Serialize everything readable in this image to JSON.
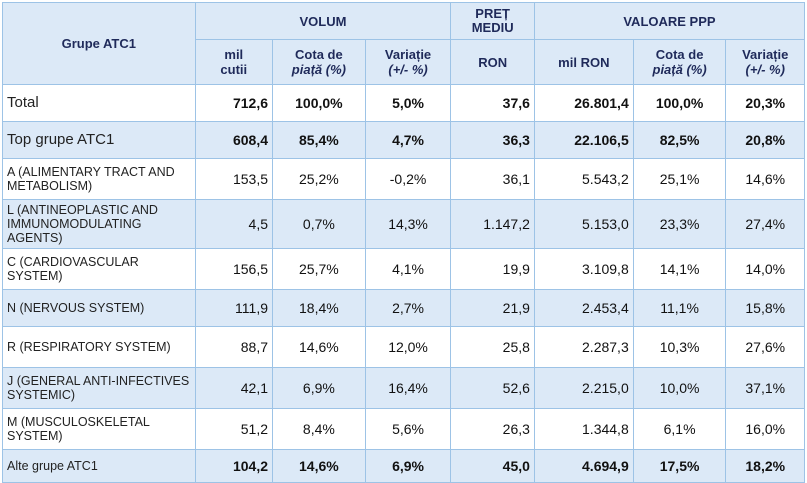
{
  "header": {
    "group_label": "Grupe ATC1",
    "volum": "VOLUM",
    "pret_line1": "PREȚ",
    "pret_line2": "MEDIU",
    "valoare": "VALOARE PPP",
    "sub": {
      "mil_cutii_1": "mil",
      "mil_cutii_2": "cutii",
      "cota1_line1": "Cota de",
      "cota1_line2": "piață (%)",
      "var1_line1": "Variație",
      "var1_line2": "(+/- %)",
      "ron": "RON",
      "mil_ron": "mil RON",
      "cota2_line1": "Cota de",
      "cota2_line2": "piață (%)",
      "var2_line1": "Variație",
      "var2_line2": "(+/- %)"
    }
  },
  "rows": [
    {
      "label": "Total",
      "mil_cutii": "712,6",
      "cota_vol": "100,0%",
      "var_vol": "5,0%",
      "ron": "37,6",
      "mil_ron": "26.801,4",
      "cota_val": "100,0%",
      "var_val": "20,3%"
    },
    {
      "label": "Top grupe ATC1",
      "mil_cutii": "608,4",
      "cota_vol": "85,4%",
      "var_vol": "4,7%",
      "ron": "36,3",
      "mil_ron": "22.106,5",
      "cota_val": "82,5%",
      "var_val": "20,8%"
    },
    {
      "label": "A (ALIMENTARY TRACT AND METABOLISM)",
      "mil_cutii": "153,5",
      "cota_vol": "25,2%",
      "var_vol": "-0,2%",
      "ron": "36,1",
      "mil_ron": "5.543,2",
      "cota_val": "25,1%",
      "var_val": "14,6%"
    },
    {
      "label": "L (ANTINEOPLASTIC AND IMMUNOMODULATING AGENTS)",
      "mil_cutii": "4,5",
      "cota_vol": "0,7%",
      "var_vol": "14,3%",
      "ron": "1.147,2",
      "mil_ron": "5.153,0",
      "cota_val": "23,3%",
      "var_val": "27,4%"
    },
    {
      "label": "C (CARDIOVASCULAR SYSTEM)",
      "mil_cutii": "156,5",
      "cota_vol": "25,7%",
      "var_vol": "4,1%",
      "ron": "19,9",
      "mil_ron": "3.109,8",
      "cota_val": "14,1%",
      "var_val": "14,0%"
    },
    {
      "label": "N (NERVOUS SYSTEM)",
      "mil_cutii": "111,9",
      "cota_vol": "18,4%",
      "var_vol": "2,7%",
      "ron": "21,9",
      "mil_ron": "2.453,4",
      "cota_val": "11,1%",
      "var_val": "15,8%"
    },
    {
      "label": "R (RESPIRATORY SYSTEM)",
      "mil_cutii": "88,7",
      "cota_vol": "14,6%",
      "var_vol": "12,0%",
      "ron": "25,8",
      "mil_ron": "2.287,3",
      "cota_val": "10,3%",
      "var_val": "27,6%"
    },
    {
      "label": "J (GENERAL ANTI-INFECTIVES SYSTEMIC)",
      "mil_cutii": "42,1",
      "cota_vol": "6,9%",
      "var_vol": "16,4%",
      "ron": "52,6",
      "mil_ron": "2.215,0",
      "cota_val": "10,0%",
      "var_val": "37,1%"
    },
    {
      "label": "M (MUSCULOSKELETAL SYSTEM)",
      "mil_cutii": "51,2",
      "cota_vol": "8,4%",
      "var_vol": "5,6%",
      "ron": "26,3",
      "mil_ron": "1.344,8",
      "cota_val": "6,1%",
      "var_val": "16,0%"
    },
    {
      "label": "Alte grupe ATC1",
      "mil_cutii": "104,2",
      "cota_vol": "14,6%",
      "var_vol": "6,9%",
      "ron": "45,0",
      "mil_ron": "4.694,9",
      "cota_val": "17,5%",
      "var_val": "18,2%"
    }
  ]
}
